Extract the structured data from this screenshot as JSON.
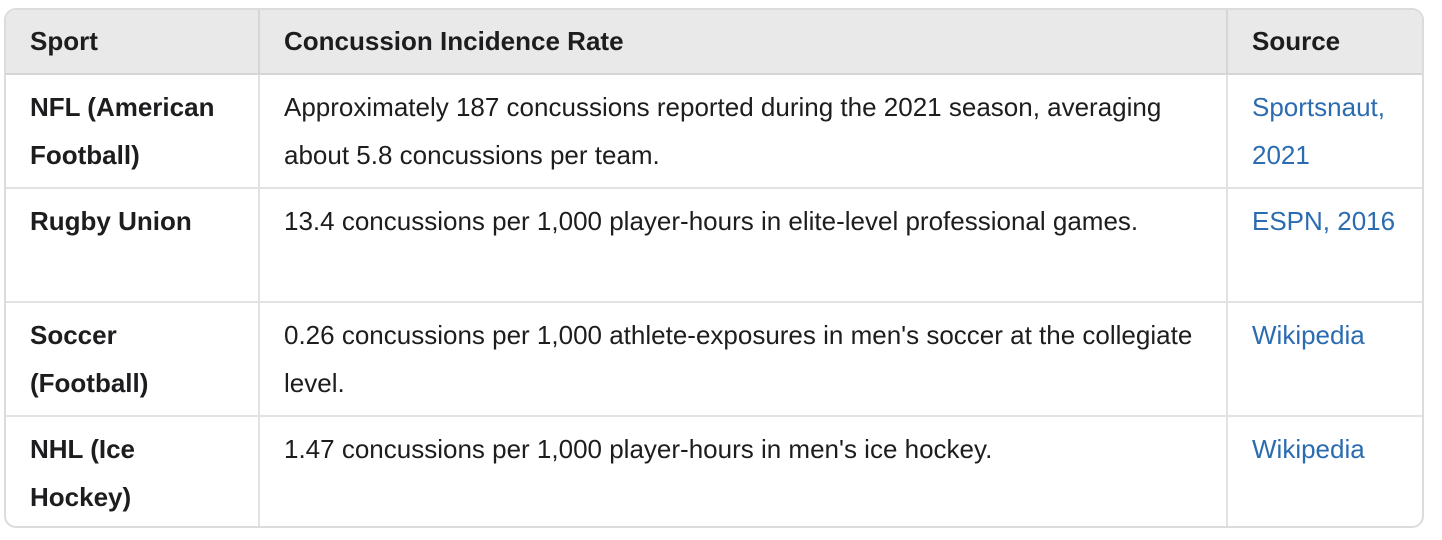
{
  "table": {
    "headers": [
      "Sport",
      "Concussion Incidence Rate",
      "Source"
    ],
    "rows": [
      {
        "sport": "NFL (American Football)",
        "rate": "Approximately 187 concussions reported during the 2021 season, averaging about 5.8 concussions per team.",
        "source": "Sportsnaut, 2021"
      },
      {
        "sport": "Rugby Union",
        "rate": "13.4 concussions per 1,000 player-hours in elite-level professional games.",
        "source": "ESPN, 2016"
      },
      {
        "sport": "Soccer (Football)",
        "rate": "0.26 concussions per 1,000 athlete-exposures in men's soccer at the collegiate level.",
        "source": "Wikipedia"
      },
      {
        "sport": "NHL (Ice Hockey)",
        "rate": "1.47 concussions per 1,000 player-hours in men's ice hockey.",
        "source": "Wikipedia"
      }
    ]
  },
  "colors": {
    "header_bg": "#e9e9e9",
    "link": "#2b6cb0",
    "border": "#dcdcdc"
  }
}
